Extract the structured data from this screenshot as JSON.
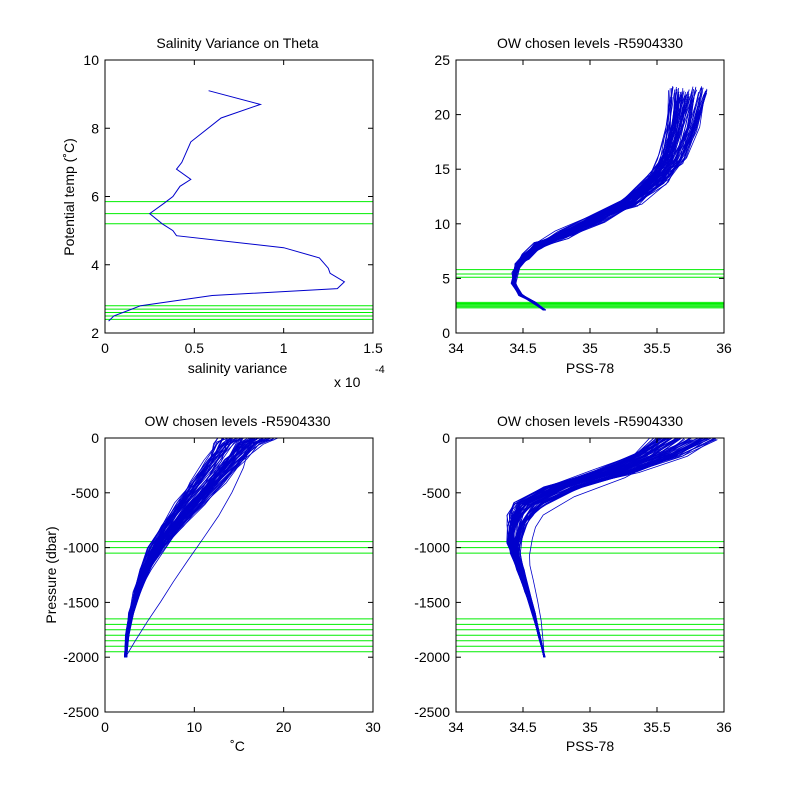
{
  "figure": {
    "background": "#ffffff",
    "axis_color": "#000000",
    "profile_color": "#0000cc",
    "level_color": "#00ee00"
  },
  "chart_data": [
    {
      "id": "p1",
      "type": "line",
      "title": "Salinity Variance on Theta",
      "xlabel": "salinity variance",
      "ylabel": "Potential temp (˚C)",
      "x_exponent_label": "x 10",
      "x_exponent": "-4",
      "xlim": [
        0,
        1.5
      ],
      "ylim": [
        2,
        10
      ],
      "xticks": [
        0,
        0.5,
        1,
        1.5
      ],
      "xtick_labels": [
        "0",
        "0.5",
        "1",
        "1.5"
      ],
      "yticks": [
        2,
        4,
        6,
        8,
        10
      ],
      "ytick_labels": [
        "2",
        "4",
        "6",
        "8",
        "10"
      ],
      "grid": false,
      "series": [
        {
          "x": [
            0.58,
            0.87,
            0.65,
            0.48,
            0.43,
            0.4,
            0.48,
            0.42,
            0.38,
            0.33,
            0.25,
            0.32,
            0.38,
            0.4,
            1.0,
            1.2,
            1.25,
            1.26,
            1.34,
            1.3,
            0.6,
            0.2,
            0.05,
            0.02
          ],
          "y": [
            9.1,
            8.7,
            8.3,
            7.6,
            7.0,
            6.8,
            6.5,
            6.3,
            6.0,
            5.8,
            5.5,
            5.2,
            5.0,
            4.85,
            4.5,
            4.2,
            3.9,
            3.75,
            3.5,
            3.3,
            3.1,
            2.8,
            2.5,
            2.35
          ]
        }
      ],
      "hlines": [
        5.85,
        5.5,
        5.2,
        2.8,
        2.7,
        2.6,
        2.5,
        2.4
      ]
    },
    {
      "id": "p2",
      "type": "line",
      "title": "OW chosen levels -R5904330",
      "xlabel": "PSS-78",
      "ylabel": "",
      "xlim": [
        34,
        36
      ],
      "ylim": [
        0,
        25
      ],
      "xticks": [
        34,
        34.5,
        35,
        35.5,
        36
      ],
      "xtick_labels": [
        "34",
        "34.5",
        "35",
        "35.5",
        "36"
      ],
      "yticks": [
        0,
        5,
        10,
        15,
        20,
        25
      ],
      "ytick_labels": [
        "0",
        "5",
        "10",
        "15",
        "20",
        "25"
      ],
      "grid": false,
      "series": [
        {
          "x": [
            34.66,
            34.58,
            34.48,
            34.43,
            34.44,
            34.46,
            34.52,
            34.62,
            34.8,
            35.05,
            35.3,
            35.5,
            35.62,
            35.7,
            35.75
          ],
          "y": [
            2.1,
            2.8,
            3.5,
            4.5,
            5.5,
            6.2,
            7.0,
            8.0,
            9.0,
            10.5,
            12.0,
            14.0,
            16.0,
            19.0,
            22.0
          ]
        }
      ],
      "hlines": [
        5.8,
        5.4,
        5.1,
        2.8,
        2.7,
        2.6,
        2.5,
        2.4,
        2.3
      ]
    },
    {
      "id": "p3",
      "type": "line",
      "title": "OW chosen levels -R5904330",
      "xlabel": "˚C",
      "ylabel": "Pressure (dbar)",
      "xlim": [
        0,
        30
      ],
      "ylim": [
        -2500,
        0
      ],
      "xticks": [
        0,
        10,
        20,
        30
      ],
      "xtick_labels": [
        "0",
        "10",
        "20",
        "30"
      ],
      "yticks": [
        -2500,
        -2000,
        -1500,
        -1000,
        -500,
        0
      ],
      "ytick_labels": [
        "-2500",
        "-2000",
        "-1500",
        "-1000",
        "-500",
        "0"
      ],
      "grid": false,
      "series": [
        {
          "x": [
            2.3,
            2.5,
            2.9,
            3.6,
            4.5,
            5.8,
            7.5,
            9.5,
            11.5,
            13.5,
            15.0,
            16.0
          ],
          "y": [
            -2000,
            -1800,
            -1600,
            -1400,
            -1200,
            -1000,
            -800,
            -600,
            -400,
            -200,
            -50,
            0
          ]
        }
      ],
      "hlines": [
        -945,
        -1000,
        -1050,
        -1650,
        -1700,
        -1750,
        -1800,
        -1850,
        -1900,
        -1950
      ]
    },
    {
      "id": "p4",
      "type": "line",
      "title": "OW chosen levels -R5904330",
      "xlabel": "PSS-78",
      "ylabel": "",
      "xlim": [
        34,
        36
      ],
      "ylim": [
        -2500,
        0
      ],
      "xticks": [
        34,
        34.5,
        35,
        35.5,
        36
      ],
      "xtick_labels": [
        "34",
        "34.5",
        "35",
        "35.5",
        "36"
      ],
      "yticks": [
        -2500,
        -2000,
        -1500,
        -1000,
        -500,
        0
      ],
      "ytick_labels": [
        "-2500",
        "-2000",
        "-1500",
        "-1000",
        "-500",
        "0"
      ],
      "grid": false,
      "series": [
        {
          "x": [
            34.66,
            34.62,
            34.58,
            34.53,
            34.48,
            34.44,
            34.43,
            34.45,
            34.48,
            34.55,
            34.8,
            35.2,
            35.5,
            35.7
          ],
          "y": [
            -2000,
            -1800,
            -1600,
            -1400,
            -1200,
            -1050,
            -950,
            -800,
            -700,
            -600,
            -450,
            -300,
            -150,
            0
          ]
        }
      ],
      "hlines": [
        -945,
        -1000,
        -1050,
        -1650,
        -1700,
        -1750,
        -1800,
        -1850,
        -1900,
        -1950
      ]
    }
  ]
}
